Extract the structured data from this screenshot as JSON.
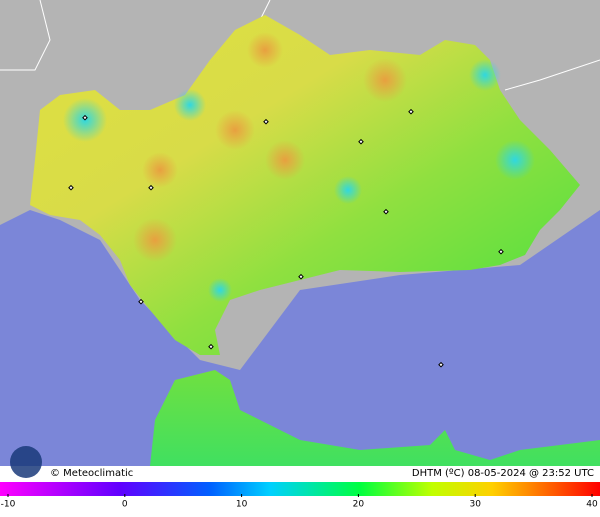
{
  "header": {
    "brand": "© Meteoclimatic",
    "caption": "DHTM (ºC) 08-05-2024 @ 23:52 UTC"
  },
  "colorbar": {
    "min": -10,
    "max": 40,
    "ticks": [
      -10,
      0,
      10,
      20,
      30,
      40
    ]
  }
}
